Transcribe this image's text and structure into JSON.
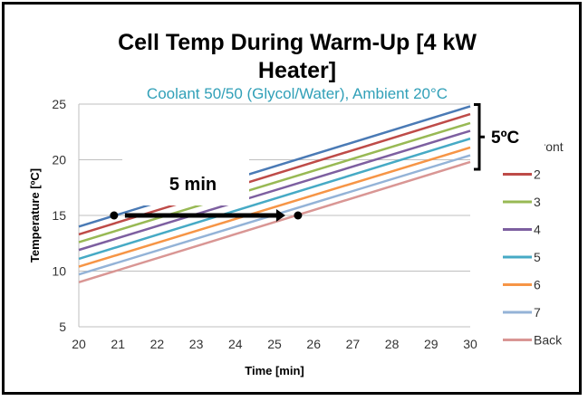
{
  "chart_data": {
    "type": "line",
    "title": "Cell Temp During Warm-Up [4 kW Heater]",
    "title_lines": [
      "Cell Temp During Warm-Up [4 kW",
      "Heater]"
    ],
    "subtitle": "Coolant 50/50 (Glycol/Water), Ambient 20°C",
    "xlabel": "Time [min]",
    "ylabel": "Temperature [ºC]",
    "xlim": [
      20,
      30
    ],
    "ylim": [
      5,
      25
    ],
    "xticks": [
      20,
      21,
      22,
      23,
      24,
      25,
      26,
      27,
      28,
      29,
      30
    ],
    "yticks": [
      5,
      10,
      15,
      20,
      25
    ],
    "grid": "horizontal",
    "legend_position": "right",
    "x": [
      20,
      30
    ],
    "series": [
      {
        "name": "Front",
        "color": "#4a7ab5",
        "values": [
          14.0,
          24.8
        ]
      },
      {
        "name": "2",
        "color": "#be4b48",
        "values": [
          13.3,
          24.1
        ]
      },
      {
        "name": "3",
        "color": "#98b954",
        "values": [
          12.6,
          23.3
        ]
      },
      {
        "name": "4",
        "color": "#7d5fa0",
        "values": [
          11.9,
          22.6
        ]
      },
      {
        "name": "5",
        "color": "#46aac5",
        "values": [
          11.1,
          21.9
        ]
      },
      {
        "name": "6",
        "color": "#f69546",
        "values": [
          10.4,
          21.1
        ]
      },
      {
        "name": "7",
        "color": "#94b3d7",
        "values": [
          9.7,
          20.4
        ]
      },
      {
        "name": "Back",
        "color": "#d99694",
        "values": [
          9.0,
          19.8
        ]
      }
    ],
    "annotations": {
      "time_arrow": {
        "label": "5 min",
        "y": 15,
        "start_dot": 20.9,
        "end_dot": 25.6
      },
      "spread_bracket": {
        "label": "5ºC",
        "x": 30,
        "from": 19.8,
        "to": 24.8
      }
    },
    "colors": {
      "subtitle": "#31a0b8",
      "grid": "#bfbfbf"
    }
  }
}
